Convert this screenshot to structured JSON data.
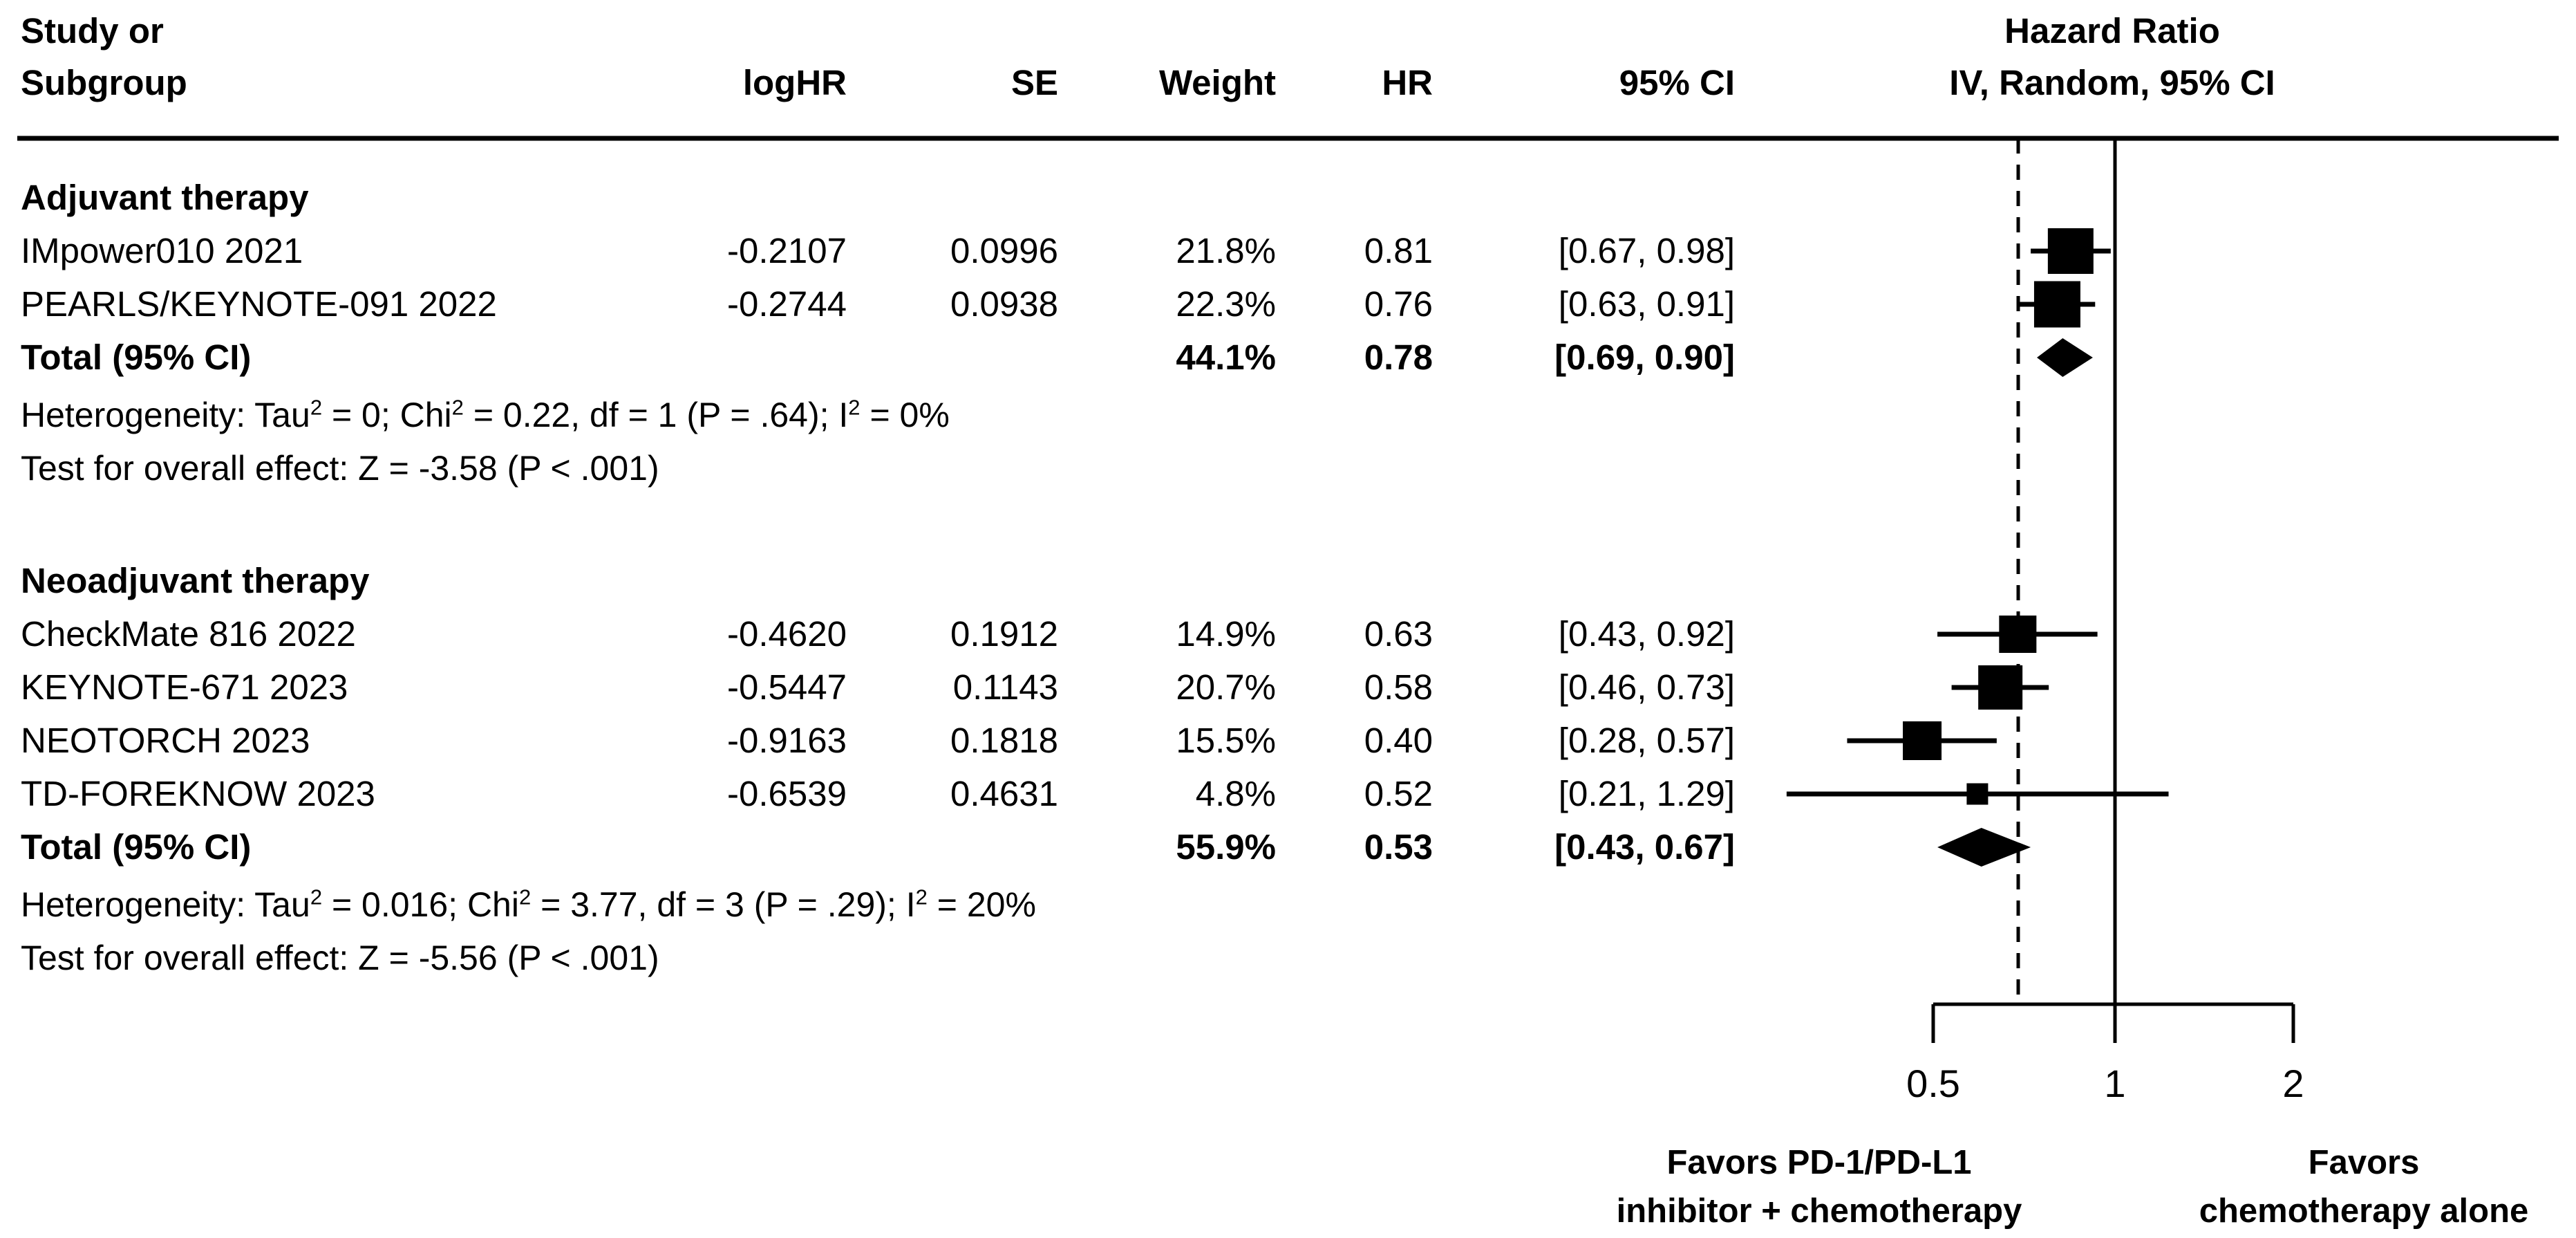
{
  "header": {
    "study_col_line1": "Study or",
    "study_col_line2": "Subgroup",
    "cols": [
      "logHR",
      "SE",
      "Weight",
      "HR",
      "95% CI"
    ],
    "plot_col_line1": "Hazard Ratio",
    "plot_col_line2": "IV, Random, 95% CI"
  },
  "chart_data": {
    "type": "forest",
    "effect_measure": "Hazard Ratio",
    "model": "IV, Random, 95% CI",
    "x_scale": "log",
    "x_ticks": [
      0.5,
      1,
      2
    ],
    "reference_line_hr": 1,
    "overall_dashed_line_hr": 0.63,
    "groups": [
      {
        "name": "Adjuvant therapy",
        "studies": [
          {
            "study": "IMpower010 2021",
            "logHR": "-0.2107",
            "SE": "0.0996",
            "weight": "21.8%",
            "HR": "0.81",
            "CI": "[0.67, 0.98]",
            "hr": 0.81,
            "ci_low": 0.67,
            "ci_high": 0.98,
            "marker_px": 66
          },
          {
            "study": "PEARLS/KEYNOTE-091 2022",
            "logHR": "-0.2744",
            "SE": "0.0938",
            "weight": "22.3%",
            "HR": "0.76",
            "CI": "[0.63, 0.91]",
            "hr": 0.76,
            "ci_low": 0.63,
            "ci_high": 0.91,
            "marker_px": 67
          }
        ],
        "total": {
          "label": "Total (95% CI)",
          "weight": "44.1%",
          "HR": "0.78",
          "CI": "[0.69, 0.90]",
          "hr": 0.78,
          "ci_low": 0.69,
          "ci_high": 0.9
        },
        "heterogeneity_parts": [
          {
            "t": "Heterogeneity: Tau"
          },
          {
            "s": "2"
          },
          {
            "t": " = 0; Chi"
          },
          {
            "s": "2"
          },
          {
            "t": " = 0.22, df = 1 (P = .64); I"
          },
          {
            "s": "2"
          },
          {
            "t": " = 0%"
          }
        ],
        "test_line": "Test for overall effect: Z = -3.58 (P < .001)"
      },
      {
        "name": "Neoadjuvant therapy",
        "studies": [
          {
            "study": "CheckMate 816 2022",
            "logHR": "-0.4620",
            "SE": "0.1912",
            "weight": "14.9%",
            "HR": "0.63",
            "CI": "[0.43, 0.92]",
            "hr": 0.63,
            "ci_low": 0.43,
            "ci_high": 0.92,
            "marker_px": 54
          },
          {
            "study": "KEYNOTE-671 2023",
            "logHR": "-0.5447",
            "SE": "0.1143",
            "weight": "20.7%",
            "HR": "0.58",
            "CI": "[0.46, 0.73]",
            "hr": 0.58,
            "ci_low": 0.46,
            "ci_high": 0.73,
            "marker_px": 64
          },
          {
            "study": "NEOTORCH 2023",
            "logHR": "-0.9163",
            "SE": "0.1818",
            "weight": "15.5%",
            "HR": "0.40",
            "CI": "[0.28, 0.57]",
            "hr": 0.4,
            "ci_low": 0.28,
            "ci_high": 0.57,
            "marker_px": 56
          },
          {
            "study": "TD-FOREKNOW 2023",
            "logHR": "-0.6539",
            "SE": "0.4631",
            "weight": "4.8%",
            "HR": "0.52",
            "CI": "[0.21, 1.29]",
            "hr": 0.52,
            "ci_low": 0.21,
            "ci_high": 1.29,
            "marker_px": 31
          }
        ],
        "total": {
          "label": "Total (95% CI)",
          "weight": "55.9%",
          "HR": "0.53",
          "CI": "[0.43, 0.67]",
          "hr": 0.53,
          "ci_low": 0.43,
          "ci_high": 0.67
        },
        "heterogeneity_parts": [
          {
            "t": "Heterogeneity: Tau"
          },
          {
            "s": "2"
          },
          {
            "t": " = 0.016; Chi"
          },
          {
            "s": "2"
          },
          {
            "t": " = 3.77, df = 3 (P = .29); I"
          },
          {
            "s": "2"
          },
          {
            "t": " = 20%"
          }
        ],
        "test_line": "Test for overall effect: Z = -5.56 (P < .001)"
      }
    ]
  },
  "footer": {
    "tick_labels": [
      "0.5",
      "1",
      "2"
    ],
    "favors_left_line1": "Favors PD-1/PD-L1",
    "favors_left_line2": "inhibitor + chemotherapy",
    "favors_right_line1": "Favors",
    "favors_right_line2": "chemotherapy alone"
  }
}
